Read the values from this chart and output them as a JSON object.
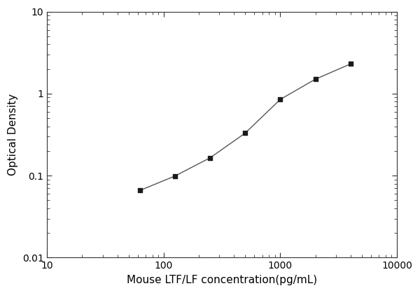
{
  "x": [
    62.5,
    125,
    250,
    500,
    1000,
    2000,
    4000
  ],
  "y": [
    0.066,
    0.099,
    0.165,
    0.33,
    0.85,
    1.5,
    2.3
  ],
  "xlabel": "Mouse LTF/LF concentration(pg/mL)",
  "ylabel": "Optical Density",
  "xlim": [
    10,
    10000
  ],
  "ylim": [
    0.01,
    10
  ],
  "marker": "s",
  "marker_color": "#1a1a1a",
  "marker_size": 5,
  "line_color": "#555555",
  "line_width": 1.0,
  "line_style": "-",
  "background_color": "#ffffff",
  "xlabel_fontsize": 11,
  "ylabel_fontsize": 11,
  "tick_fontsize": 10,
  "figure_width": 6.0,
  "figure_height": 4.19,
  "dpi": 100,
  "x_tick_labels": [
    "10",
    "100",
    "1000",
    "10000"
  ],
  "x_ticks": [
    10,
    100,
    1000,
    10000
  ],
  "y_ticks": [
    0.01,
    0.1,
    1,
    10
  ],
  "y_tick_labels": [
    "0.01",
    "0.1",
    "1",
    "10"
  ]
}
